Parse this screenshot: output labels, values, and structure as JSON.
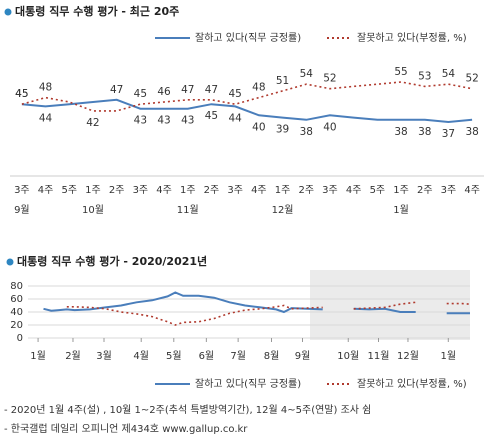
{
  "chart_data": [
    {
      "type": "line",
      "title": "대통령 직무 수행 평가 - 최근 20주",
      "categories": [
        "3주",
        "4주",
        "5주",
        "1주",
        "2주",
        "3주",
        "4주",
        "1주",
        "2주",
        "3주",
        "4주",
        "1주",
        "2주",
        "3주",
        "4주",
        "5주",
        "1주",
        "2주",
        "3주",
        "4주"
      ],
      "months": [
        "9월",
        null,
        null,
        "10월",
        null,
        null,
        null,
        "11월",
        null,
        null,
        null,
        "12월",
        null,
        null,
        null,
        null,
        "1월",
        null,
        null,
        null
      ],
      "series": [
        {
          "name": "잘하고 있다(직무 긍정률)",
          "color": "#4a7ebb",
          "style": "solid",
          "values": [
            45,
            44,
            45,
            46,
            47,
            43,
            43,
            43,
            45,
            44,
            40,
            39,
            38,
            40,
            39,
            38,
            38,
            38,
            37,
            38
          ],
          "value_labels": [
            "45",
            "44",
            null,
            null,
            "47",
            "43",
            "43",
            "43",
            "45",
            "44",
            "40",
            "39",
            "38",
            "40",
            null,
            null,
            "38",
            "38",
            "37",
            "38"
          ]
        },
        {
          "name": "잘못하고 있다(부정률, %)",
          "color": "#b03a2e",
          "style": "dotted",
          "values": [
            45,
            48,
            46,
            42,
            42,
            45,
            46,
            47,
            47,
            45,
            48,
            51,
            54,
            52,
            53,
            54,
            55,
            53,
            54,
            52
          ],
          "value_labels": [
            "45",
            "48",
            null,
            "42",
            null,
            "45",
            "46",
            "47",
            "47",
            "45",
            "48",
            "51",
            "54",
            "52",
            null,
            null,
            "55",
            "53",
            "54",
            "52"
          ]
        }
      ]
    },
    {
      "type": "line",
      "title": "대통령 직무 수행 평가 - 2020/2021년",
      "x": [
        2,
        3,
        4,
        5,
        6,
        8,
        10,
        12,
        14,
        16,
        18,
        19,
        20,
        22,
        24,
        26,
        28,
        30,
        32,
        33,
        34,
        36,
        38,
        40,
        42,
        44,
        46,
        48,
        50,
        51,
        52,
        54,
        56,
        57
      ],
      "xlim": [
        0,
        57
      ],
      "xticks": [
        {
          "value": 1.3,
          "label": "1월"
        },
        {
          "value": 5.8,
          "label": "2월"
        },
        {
          "value": 9.8,
          "label": "3월"
        },
        {
          "value": 14.6,
          "label": "4월"
        },
        {
          "value": 18.8,
          "label": "5월"
        },
        {
          "value": 23,
          "label": "6월"
        },
        {
          "value": 27.1,
          "label": "7월"
        },
        {
          "value": 31.4,
          "label": "8월"
        },
        {
          "value": 35.4,
          "label": "9월"
        },
        {
          "value": 41.3,
          "label": "10월"
        },
        {
          "value": 45.2,
          "label": "11월"
        },
        {
          "value": 49,
          "label": "12월"
        },
        {
          "value": 54.2,
          "label": "1월"
        }
      ],
      "ylim": [
        0,
        80
      ],
      "yticks": [
        0,
        20,
        40,
        60,
        80
      ],
      "grid": true,
      "series": [
        {
          "name": "잘하고 있다(직무 긍정률)",
          "color": "#4a7ebb",
          "style": "solid",
          "values": [
            45,
            42,
            43,
            44,
            43,
            44,
            47,
            50,
            55,
            58,
            64,
            70,
            65,
            65,
            62,
            55,
            50,
            47,
            44,
            40,
            46,
            45,
            44,
            null,
            45,
            44,
            45,
            40,
            40,
            null,
            null,
            38,
            38,
            38
          ]
        },
        {
          "name": "잘못하고 있다(부정률, %)",
          "color": "#b03a2e",
          "style": "dotted",
          "values": [
            null,
            null,
            null,
            48,
            48,
            47,
            45,
            40,
            37,
            33,
            25,
            20,
            24,
            25,
            30,
            38,
            43,
            45,
            48,
            50,
            45,
            46,
            47,
            null,
            45,
            46,
            47,
            52,
            55,
            null,
            null,
            53,
            53,
            52
          ]
        }
      ]
    }
  ],
  "notes": [
    "- 2020년 1월 4주(설) , 10월 1~2주(추석 특별방역기간), 12월 4~5주(연말) 조사 쉼",
    "- 한국갤럽 데일리 오피니언 제434호 www.gallup.co.kr"
  ]
}
